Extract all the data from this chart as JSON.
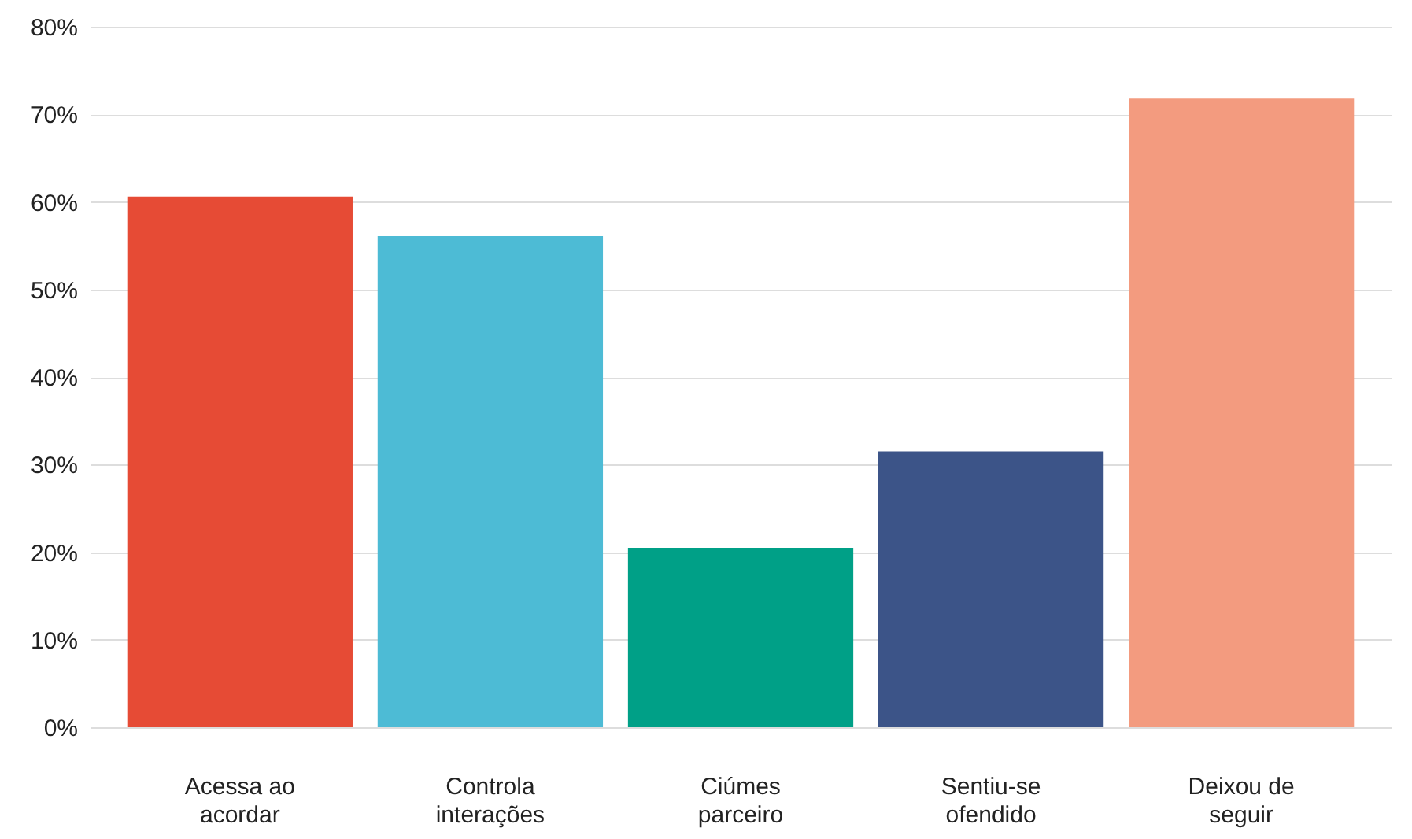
{
  "chart_data": {
    "type": "bar",
    "categories": [
      "Acessa ao acordar",
      "Controla interações",
      "Ciúmes parceiro",
      "Sentiu-se ofendido",
      "Deixou de seguir"
    ],
    "values": [
      60.6,
      56.1,
      20.5,
      31.5,
      71.8
    ],
    "colors": [
      "#e64b35",
      "#4dbbd5",
      "#00a087",
      "#3c5488",
      "#f39b7f"
    ],
    "ylim": [
      0,
      80
    ],
    "yticks": [
      {
        "value": 0,
        "label": "0%"
      },
      {
        "value": 10,
        "label": "10%"
      },
      {
        "value": 20,
        "label": "20%"
      },
      {
        "value": 30,
        "label": "30%"
      },
      {
        "value": 40,
        "label": "40%"
      },
      {
        "value": 50,
        "label": "50%"
      },
      {
        "value": 60,
        "label": "60%"
      },
      {
        "value": 70,
        "label": "70%"
      },
      {
        "value": 80,
        "label": "80%"
      }
    ],
    "grid": "y"
  }
}
